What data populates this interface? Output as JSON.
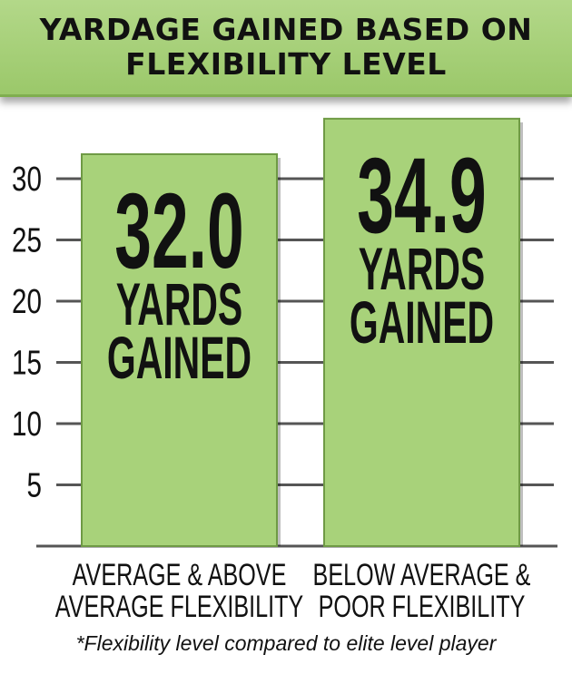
{
  "chart_data": {
    "type": "bar",
    "title": "YARDAGE GAINED BASED ON FLEXIBILITY LEVEL",
    "categories": [
      "AVERAGE & ABOVE AVERAGE FLEXIBILITY",
      "BELOW AVERAGE & POOR FLEXIBILITY"
    ],
    "category_lines": [
      [
        "AVERAGE & ABOVE",
        "AVERAGE FLEXIBILITY"
      ],
      [
        "BELOW AVERAGE &",
        "POOR FLEXIBILITY"
      ]
    ],
    "values": [
      32.0,
      34.9
    ],
    "value_labels": [
      "32.0",
      "34.9"
    ],
    "bar_text": [
      "YARDS",
      "GAINED"
    ],
    "y_ticks": [
      5,
      10,
      15,
      20,
      25,
      30
    ],
    "ylim": [
      0,
      30
    ],
    "grid": true,
    "footnote": "*Flexibility level compared to elite level player",
    "colors": {
      "bar": "#a8d27a",
      "banner": "#a8d27a",
      "grid": "#555555",
      "text": "#111111"
    }
  }
}
